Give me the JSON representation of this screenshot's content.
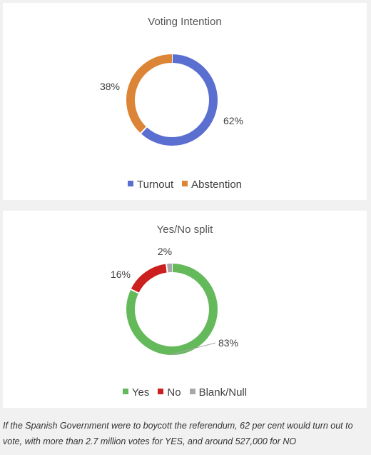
{
  "chart_data": [
    {
      "type": "donut",
      "title": "Voting Intention",
      "categories": [
        "Turnout",
        "Abstention"
      ],
      "values": [
        62,
        38
      ],
      "labels": [
        "62%",
        "38%"
      ],
      "colors": [
        "#5b6fd0",
        "#dc8536"
      ],
      "legend_position": "bottom"
    },
    {
      "type": "donut",
      "title": "Yes/No split",
      "categories": [
        "Yes",
        "No",
        "Blank/Null"
      ],
      "values": [
        83,
        16,
        2
      ],
      "labels": [
        "83%",
        "16%",
        "2%"
      ],
      "colors": [
        "#64b95a",
        "#cc1f1f",
        "#a8a8a8"
      ],
      "legend_position": "bottom"
    }
  ],
  "caption": "If the Spanish Government were to boycott the referendum, 62 per cent would turn out to vote, with more than 2.7 million votes for YES, and around 527,000 for NO"
}
